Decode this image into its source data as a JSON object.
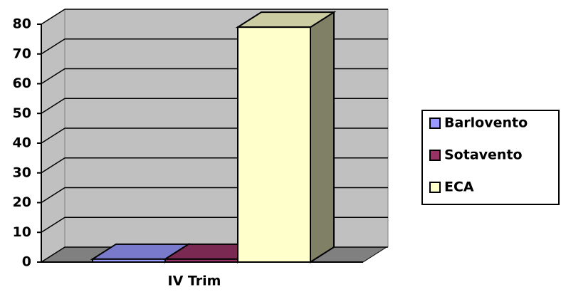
{
  "chart_data": {
    "type": "bar3d",
    "categories": [
      "IV Trim"
    ],
    "series": [
      {
        "name": "Barlovento",
        "color": "#9999ff",
        "values": [
          1
        ]
      },
      {
        "name": "Sotavento",
        "color": "#993366",
        "values": [
          1
        ]
      },
      {
        "name": "ECA",
        "color": "#ffffcc",
        "values": [
          79
        ]
      }
    ],
    "ylim": [
      0,
      80
    ],
    "yticks": [
      0,
      10,
      20,
      30,
      40,
      50,
      60,
      70,
      80
    ],
    "grid": true,
    "legend": "right"
  }
}
